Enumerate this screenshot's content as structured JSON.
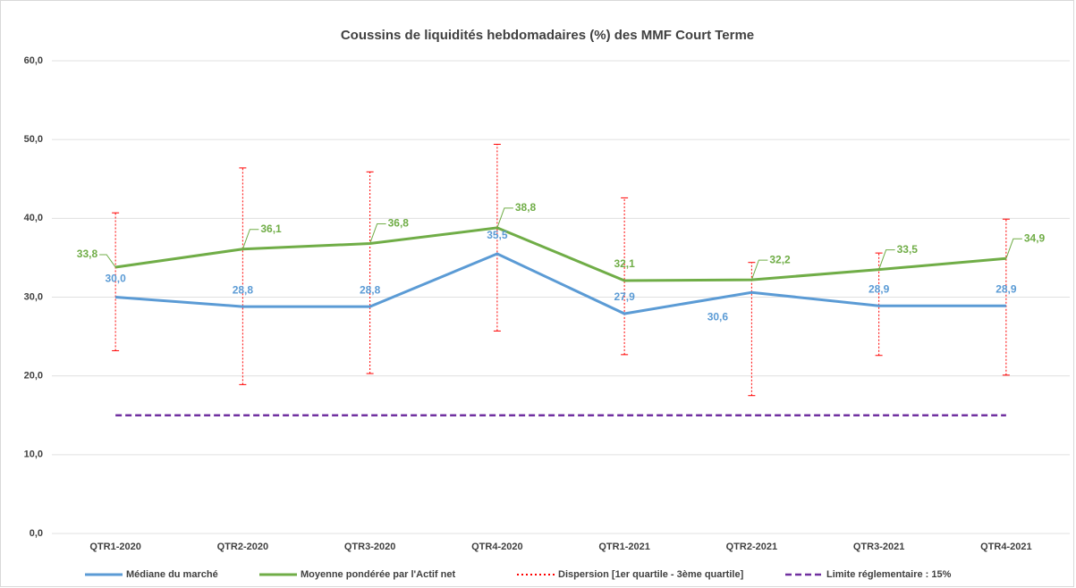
{
  "chart_data": {
    "type": "line",
    "title": "Coussins de liquidités hebdomadaires (%) des MMF Court Terme",
    "categories": [
      "QTR1-2020",
      "QTR2-2020",
      "QTR3-2020",
      "QTR4-2020",
      "QTR1-2021",
      "QTR2-2021",
      "QTR3-2021",
      "QTR4-2021"
    ],
    "series": [
      {
        "name": "Médiane du marché",
        "color": "#5b9bd5",
        "values": [
          30.0,
          28.8,
          28.8,
          35.5,
          27.9,
          30.6,
          28.9,
          28.9
        ],
        "value_labels": [
          "30,0",
          "28,8",
          "28,8",
          "35,5",
          "27,9",
          "30,6",
          "28,9",
          "28,9"
        ]
      },
      {
        "name": "Moyenne pondérée par l'Actif net",
        "color": "#70ad47",
        "values": [
          33.8,
          36.1,
          36.8,
          38.8,
          32.1,
          32.2,
          33.5,
          34.9
        ],
        "value_labels": [
          "33,8",
          "36,1",
          "36,8",
          "38,8",
          "32,1",
          "32,2",
          "33,5",
          "34,9"
        ]
      },
      {
        "name": "Limite réglementaire : 15%",
        "color": "#7030a0",
        "dash": "dashed",
        "values": [
          15,
          15,
          15,
          15,
          15,
          15,
          15,
          15
        ]
      }
    ],
    "dispersion": {
      "name": "Dispersion [1er quartile - 3ème quartile]",
      "color": "#ff0000",
      "low": [
        23.2,
        18.9,
        20.3,
        25.7,
        22.7,
        17.5,
        22.6,
        20.1
      ],
      "high": [
        40.7,
        46.4,
        45.9,
        49.4,
        42.6,
        34.4,
        35.6,
        39.9
      ]
    },
    "ylim": [
      0,
      60
    ],
    "yticks": [
      {
        "value": 0,
        "label": "0,0"
      },
      {
        "value": 10,
        "label": "10,0"
      },
      {
        "value": 20,
        "label": "20,0"
      },
      {
        "value": 30,
        "label": "30,0"
      },
      {
        "value": 40,
        "label": "40,0"
      },
      {
        "value": 50,
        "label": "50,0"
      },
      {
        "value": 60,
        "label": "60,0"
      }
    ],
    "grid": true,
    "legend": "bottom"
  }
}
